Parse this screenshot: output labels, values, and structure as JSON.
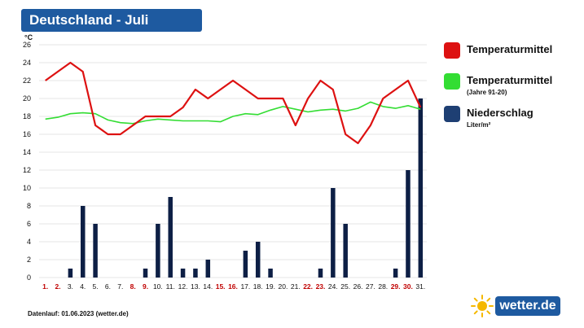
{
  "title": "Deutschland - Juli",
  "footer": "Datenlauf: 01.06.2023 (wetter.de)",
  "logo_text": "wetter.de",
  "legend": [
    {
      "label": "Temperaturmittel",
      "sub": "",
      "color": "#dd1111"
    },
    {
      "label": "Temperaturmittel",
      "sub": "(Jahre 91-20)",
      "color": "#33dd33"
    },
    {
      "label": "Niederschlag",
      "sub": "Liter/m²",
      "color": "#1e3f73"
    }
  ],
  "colors": {
    "title_bg": "#1e5aa0",
    "temp": "#dd1111",
    "climate": "#33dd33",
    "precip": "#0d1f45",
    "weekend_label": "#c00000",
    "label": "#111111",
    "grid": "#e6e6e6"
  },
  "chart_data": {
    "type": "line",
    "yunit": "°C",
    "ylim": [
      0,
      26
    ],
    "yticks": [
      0,
      2,
      4,
      6,
      8,
      10,
      12,
      14,
      16,
      18,
      20,
      22,
      24,
      26
    ],
    "grid": true,
    "categories": [
      "1.",
      "2.",
      "3.",
      "4.",
      "5.",
      "6.",
      "7.",
      "8.",
      "9.",
      "10.",
      "11.",
      "12.",
      "13.",
      "14.",
      "15.",
      "16.",
      "17.",
      "18.",
      "19.",
      "20.",
      "21.",
      "22.",
      "23.",
      "24.",
      "25.",
      "26.",
      "27.",
      "28.",
      "29.",
      "30.",
      "31."
    ],
    "weekend_days": [
      1,
      2,
      8,
      9,
      15,
      16,
      22,
      23,
      29,
      30
    ],
    "series": [
      {
        "name": "Temperaturmittel",
        "type": "line",
        "values": [
          22,
          23,
          24,
          23,
          17,
          16,
          16,
          17,
          18,
          18,
          18,
          19,
          21,
          20,
          21,
          22,
          21,
          20,
          20,
          20,
          17,
          20,
          22,
          21,
          16,
          15,
          17,
          20,
          21,
          22,
          19
        ]
      },
      {
        "name": "Temperaturmittel (Jahre 91-20)",
        "type": "line",
        "values": [
          17.7,
          17.9,
          18.3,
          18.4,
          18.3,
          17.6,
          17.3,
          17.2,
          17.5,
          17.7,
          17.6,
          17.5,
          17.5,
          17.5,
          17.4,
          18,
          18.3,
          18.2,
          18.7,
          19.1,
          18.8,
          18.5,
          18.7,
          18.8,
          18.6,
          18.9,
          19.6,
          19.1,
          18.9,
          19.2,
          18.8
        ]
      },
      {
        "name": "Niederschlag",
        "type": "bar",
        "values": [
          0,
          0,
          1,
          8,
          6,
          0,
          0,
          0,
          1,
          6,
          9,
          1,
          1,
          2,
          0,
          0,
          3,
          4,
          1,
          0,
          0,
          0,
          1,
          10,
          6,
          0,
          0,
          0,
          1,
          12,
          20
        ]
      }
    ]
  }
}
